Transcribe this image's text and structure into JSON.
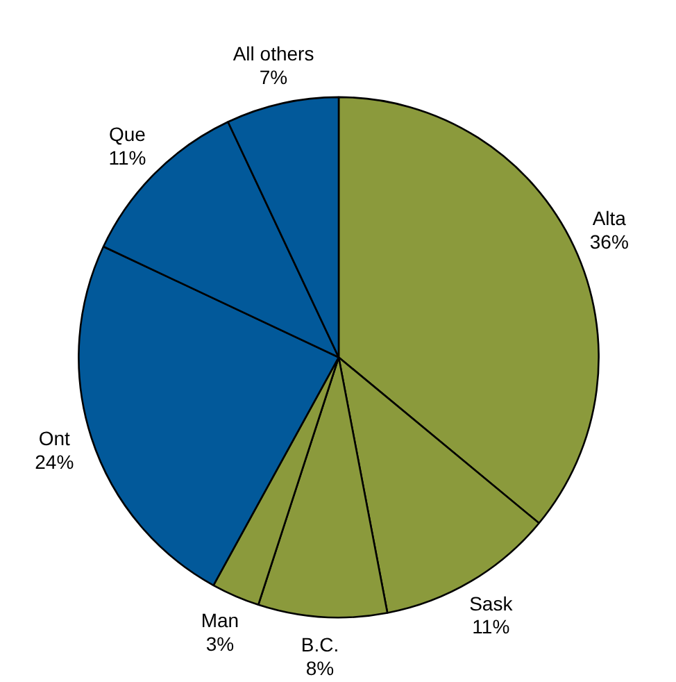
{
  "chart_data": {
    "type": "pie",
    "categories": [
      "Alta",
      "Sask",
      "B.C.",
      "Man",
      "Ont",
      "Que",
      "All others"
    ],
    "values": [
      36,
      11,
      8,
      3,
      24,
      11,
      7
    ],
    "colors": [
      "#8b9a3c",
      "#8b9a3c",
      "#8b9a3c",
      "#8b9a3c",
      "#02599a",
      "#02599a",
      "#02599a"
    ],
    "value_labels": [
      "36%",
      "11%",
      "8%",
      "3%",
      "24%",
      "11%",
      "7%"
    ]
  }
}
